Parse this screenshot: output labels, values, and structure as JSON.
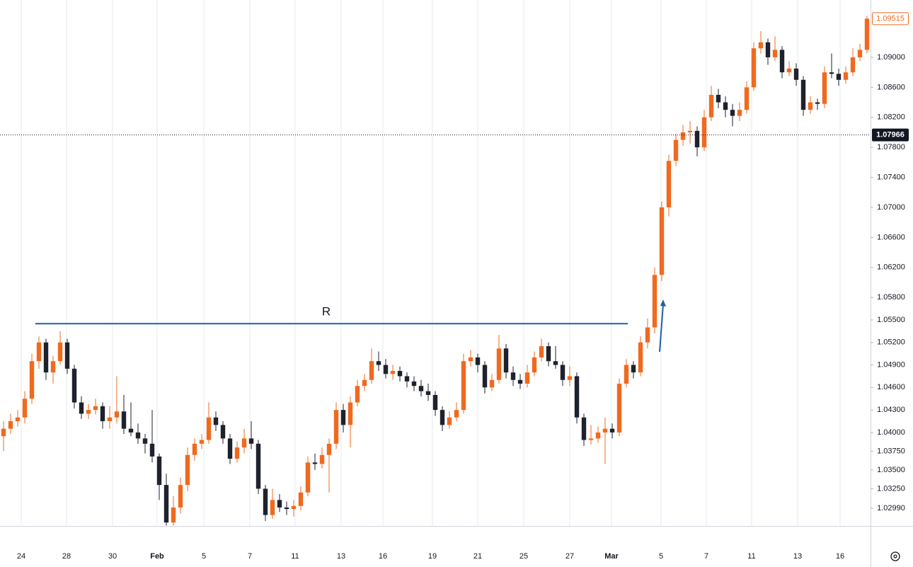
{
  "chart_data": {
    "type": "candlestick",
    "up_color": "#ef6a1f",
    "down_color": "#1e222d",
    "ohlc": [
      [
        1.0395,
        1.0415,
        1.0375,
        1.0405
      ],
      [
        1.0405,
        1.0425,
        1.0398,
        1.0415
      ],
      [
        1.0415,
        1.043,
        1.0408,
        1.042
      ],
      [
        1.042,
        1.0455,
        1.0412,
        1.0445
      ],
      [
        1.0445,
        1.0505,
        1.0438,
        1.0495
      ],
      [
        1.0495,
        1.0528,
        1.0485,
        1.052
      ],
      [
        1.052,
        1.0525,
        1.047,
        1.048
      ],
      [
        1.048,
        1.0502,
        1.0465,
        1.0495
      ],
      [
        1.0495,
        1.0535,
        1.049,
        1.052
      ],
      [
        1.052,
        1.0525,
        1.0478,
        1.0485
      ],
      [
        1.0485,
        1.049,
        1.0432,
        1.044
      ],
      [
        1.044,
        1.0448,
        1.0418,
        1.0425
      ],
      [
        1.0425,
        1.0438,
        1.0418,
        1.043
      ],
      [
        1.043,
        1.0445,
        1.0424,
        1.0435
      ],
      [
        1.0435,
        1.044,
        1.0405,
        1.0415
      ],
      [
        1.0415,
        1.0435,
        1.0405,
        1.042
      ],
      [
        1.042,
        1.0475,
        1.0412,
        1.0428
      ],
      [
        1.0428,
        1.045,
        1.0398,
        1.0405
      ],
      [
        1.0405,
        1.044,
        1.0395,
        1.04
      ],
      [
        1.04,
        1.0412,
        1.0385,
        1.0392
      ],
      [
        1.0392,
        1.0398,
        1.0372,
        1.0385
      ],
      [
        1.0385,
        1.043,
        1.036,
        1.0368
      ],
      [
        1.0368,
        1.0372,
        1.031,
        1.033
      ],
      [
        1.033,
        1.0345,
        1.0276,
        1.028
      ],
      [
        1.028,
        1.0315,
        1.0276,
        1.03
      ],
      [
        1.03,
        1.034,
        1.0292,
        1.033
      ],
      [
        1.033,
        1.038,
        1.0322,
        1.037
      ],
      [
        1.037,
        1.0392,
        1.0362,
        1.0385
      ],
      [
        1.0385,
        1.0398,
        1.0378,
        1.039
      ],
      [
        1.039,
        1.044,
        1.0385,
        1.042
      ],
      [
        1.042,
        1.0428,
        1.0402,
        1.041
      ],
      [
        1.041,
        1.0415,
        1.0385,
        1.0392
      ],
      [
        1.0392,
        1.0398,
        1.0358,
        1.0365
      ],
      [
        1.0365,
        1.0388,
        1.036,
        1.038
      ],
      [
        1.038,
        1.0405,
        1.0372,
        1.0392
      ],
      [
        1.0392,
        1.0415,
        1.0378,
        1.0385
      ],
      [
        1.0385,
        1.039,
        1.0318,
        1.0325
      ],
      [
        1.0325,
        1.033,
        1.0282,
        1.029
      ],
      [
        1.029,
        1.0325,
        1.0285,
        1.031
      ],
      [
        1.031,
        1.0318,
        1.0294,
        1.03
      ],
      [
        1.03,
        1.0308,
        1.029,
        1.0298
      ],
      [
        1.0298,
        1.031,
        1.0288,
        1.0302
      ],
      [
        1.0302,
        1.0328,
        1.0296,
        1.032
      ],
      [
        1.032,
        1.0368,
        1.0315,
        1.036
      ],
      [
        1.036,
        1.0372,
        1.035,
        1.0358
      ],
      [
        1.0358,
        1.038,
        1.0352,
        1.037
      ],
      [
        1.037,
        1.0392,
        1.032,
        1.0385
      ],
      [
        1.0385,
        1.044,
        1.0378,
        1.043
      ],
      [
        1.043,
        1.0438,
        1.04,
        1.041
      ],
      [
        1.041,
        1.0448,
        1.038,
        1.044
      ],
      [
        1.044,
        1.047,
        1.0435,
        1.0462
      ],
      [
        1.0462,
        1.0478,
        1.0455,
        1.047
      ],
      [
        1.047,
        1.0512,
        1.0465,
        1.0495
      ],
      [
        1.0495,
        1.0508,
        1.0482,
        1.049
      ],
      [
        1.049,
        1.0498,
        1.0472,
        1.0478
      ],
      [
        1.0478,
        1.049,
        1.047,
        1.0482
      ],
      [
        1.0482,
        1.0488,
        1.0468,
        1.0475
      ],
      [
        1.0475,
        1.048,
        1.046,
        1.0468
      ],
      [
        1.0468,
        1.0475,
        1.0455,
        1.0462
      ],
      [
        1.0462,
        1.047,
        1.0448,
        1.0455
      ],
      [
        1.0455,
        1.0465,
        1.0442,
        1.045
      ],
      [
        1.045,
        1.0455,
        1.0422,
        1.043
      ],
      [
        1.043,
        1.0435,
        1.0402,
        1.041
      ],
      [
        1.041,
        1.0428,
        1.0405,
        1.042
      ],
      [
        1.042,
        1.044,
        1.0415,
        1.043
      ],
      [
        1.043,
        1.0505,
        1.0425,
        1.0495
      ],
      [
        1.0495,
        1.051,
        1.0488,
        1.05
      ],
      [
        1.05,
        1.0505,
        1.048,
        1.049
      ],
      [
        1.049,
        1.0495,
        1.0452,
        1.046
      ],
      [
        1.046,
        1.0478,
        1.0455,
        1.047
      ],
      [
        1.047,
        1.053,
        1.0465,
        1.0512
      ],
      [
        1.0512,
        1.0518,
        1.0472,
        1.048
      ],
      [
        1.048,
        1.0488,
        1.0462,
        1.047
      ],
      [
        1.047,
        1.0478,
        1.0458,
        1.0465
      ],
      [
        1.0465,
        1.049,
        1.046,
        1.048
      ],
      [
        1.048,
        1.0508,
        1.0475,
        1.05
      ],
      [
        1.05,
        1.0525,
        1.0495,
        1.0515
      ],
      [
        1.0515,
        1.052,
        1.0488,
        1.0495
      ],
      [
        1.0495,
        1.0515,
        1.0485,
        1.049
      ],
      [
        1.049,
        1.0495,
        1.0462,
        1.047
      ],
      [
        1.047,
        1.0488,
        1.0462,
        1.0475
      ],
      [
        1.0475,
        1.048,
        1.0412,
        1.042
      ],
      [
        1.042,
        1.0425,
        1.0382,
        1.039
      ],
      [
        1.039,
        1.041,
        1.0384,
        1.0392
      ],
      [
        1.0392,
        1.0408,
        1.0386,
        1.04
      ],
      [
        1.04,
        1.042,
        1.0358,
        1.0405
      ],
      [
        1.0405,
        1.0412,
        1.0392,
        1.04
      ],
      [
        1.04,
        1.0472,
        1.0395,
        1.0465
      ],
      [
        1.0465,
        1.0498,
        1.046,
        1.049
      ],
      [
        1.049,
        1.0495,
        1.0472,
        1.048
      ],
      [
        1.048,
        1.0528,
        1.0475,
        1.052
      ],
      [
        1.052,
        1.0552,
        1.0512,
        1.054
      ],
      [
        1.054,
        1.062,
        1.0532,
        1.061
      ],
      [
        1.061,
        1.0708,
        1.0602,
        1.07
      ],
      [
        1.07,
        1.077,
        1.0688,
        1.0762
      ],
      [
        1.0762,
        1.0798,
        1.0755,
        1.079
      ],
      [
        1.079,
        1.081,
        1.0782,
        1.08
      ],
      [
        1.08,
        1.0815,
        1.0785,
        1.0802
      ],
      [
        1.0802,
        1.0808,
        1.0768,
        1.078
      ],
      [
        1.078,
        1.083,
        1.0775,
        1.082
      ],
      [
        1.082,
        1.0862,
        1.0815,
        1.085
      ],
      [
        1.085,
        1.0858,
        1.0832,
        1.084
      ],
      [
        1.084,
        1.0848,
        1.082,
        1.083
      ],
      [
        1.083,
        1.0838,
        1.0808,
        1.0822
      ],
      [
        1.0822,
        1.084,
        1.0815,
        1.083
      ],
      [
        1.083,
        1.0868,
        1.0825,
        1.086
      ],
      [
        1.086,
        1.092,
        1.0855,
        1.0912
      ],
      [
        1.0912,
        1.0935,
        1.0905,
        1.092
      ],
      [
        1.092,
        1.0925,
        1.089,
        1.09
      ],
      [
        1.09,
        1.0928,
        1.0895,
        1.091
      ],
      [
        1.091,
        1.0915,
        1.0872,
        1.088
      ],
      [
        1.088,
        1.0895,
        1.0875,
        1.0885
      ],
      [
        1.0885,
        1.0892,
        1.0862,
        1.087
      ],
      [
        1.087,
        1.0875,
        1.0822,
        1.083
      ],
      [
        1.083,
        1.0848,
        1.0825,
        1.084
      ],
      [
        1.084,
        1.0845,
        1.083,
        1.0838
      ],
      [
        1.0838,
        1.0888,
        1.0832,
        1.088
      ],
      [
        1.088,
        1.0905,
        1.0872,
        1.0878
      ],
      [
        1.0878,
        1.0885,
        1.0862,
        1.087
      ],
      [
        1.087,
        1.0888,
        1.0865,
        1.088
      ],
      [
        1.088,
        1.0912,
        1.0875,
        1.09
      ],
      [
        1.09,
        1.0918,
        1.0895,
        1.091
      ],
      [
        1.091,
        1.0955,
        1.0905,
        1.09515
      ]
    ],
    "xlim": [
      -0.5,
      122.5
    ],
    "xticks": [
      {
        "value": 2.5,
        "label": "24"
      },
      {
        "value": 8.9,
        "label": "28"
      },
      {
        "value": 15.4,
        "label": "30"
      },
      {
        "value": 21.7,
        "label": "Feb"
      },
      {
        "value": 28.3,
        "label": "5"
      },
      {
        "value": 34.8,
        "label": "7"
      },
      {
        "value": 41.2,
        "label": "11"
      },
      {
        "value": 47.7,
        "label": "13"
      },
      {
        "value": 53.6,
        "label": "16"
      },
      {
        "value": 60.6,
        "label": "19"
      },
      {
        "value": 67,
        "label": "21"
      },
      {
        "value": 73.5,
        "label": "25"
      },
      {
        "value": 80,
        "label": "27"
      },
      {
        "value": 85.9,
        "label": "Mar"
      },
      {
        "value": 92.9,
        "label": "5"
      },
      {
        "value": 99.3,
        "label": "7"
      },
      {
        "value": 105.7,
        "label": "11"
      },
      {
        "value": 112.2,
        "label": "13"
      },
      {
        "value": 118.2,
        "label": "16"
      }
    ],
    "xgrid": true,
    "ylim": [
      1.02754,
      1.09764
    ],
    "yticks": [
      {
        "value": 1.09,
        "label": "1.09000"
      },
      {
        "value": 1.086,
        "label": "1.08600"
      },
      {
        "value": 1.082,
        "label": "1.08200"
      },
      {
        "value": 1.078,
        "label": "1.07800"
      },
      {
        "value": 1.074,
        "label": "1.07400"
      },
      {
        "value": 1.07,
        "label": "1.07000"
      },
      {
        "value": 1.066,
        "label": "1.06600"
      },
      {
        "value": 1.062,
        "label": "1.06200"
      },
      {
        "value": 1.058,
        "label": "1.05800"
      },
      {
        "value": 1.055,
        "label": "1.05500"
      },
      {
        "value": 1.052,
        "label": "1.05200"
      },
      {
        "value": 1.049,
        "label": "1.04900"
      },
      {
        "value": 1.046,
        "label": "1.04600"
      },
      {
        "value": 1.043,
        "label": "1.04300"
      },
      {
        "value": 1.04,
        "label": "1.04000"
      },
      {
        "value": 1.0375,
        "label": "1.03750"
      },
      {
        "value": 1.035,
        "label": "1.03500"
      },
      {
        "value": 1.0325,
        "label": "1.03250"
      },
      {
        "value": 1.0299,
        "label": "1.02990"
      }
    ],
    "last_price": 1.09515,
    "crosshair_price": 1.07966,
    "resistance_level": 1.0545,
    "resistance_label": "R",
    "annotation_color": "#1f5fa8"
  }
}
